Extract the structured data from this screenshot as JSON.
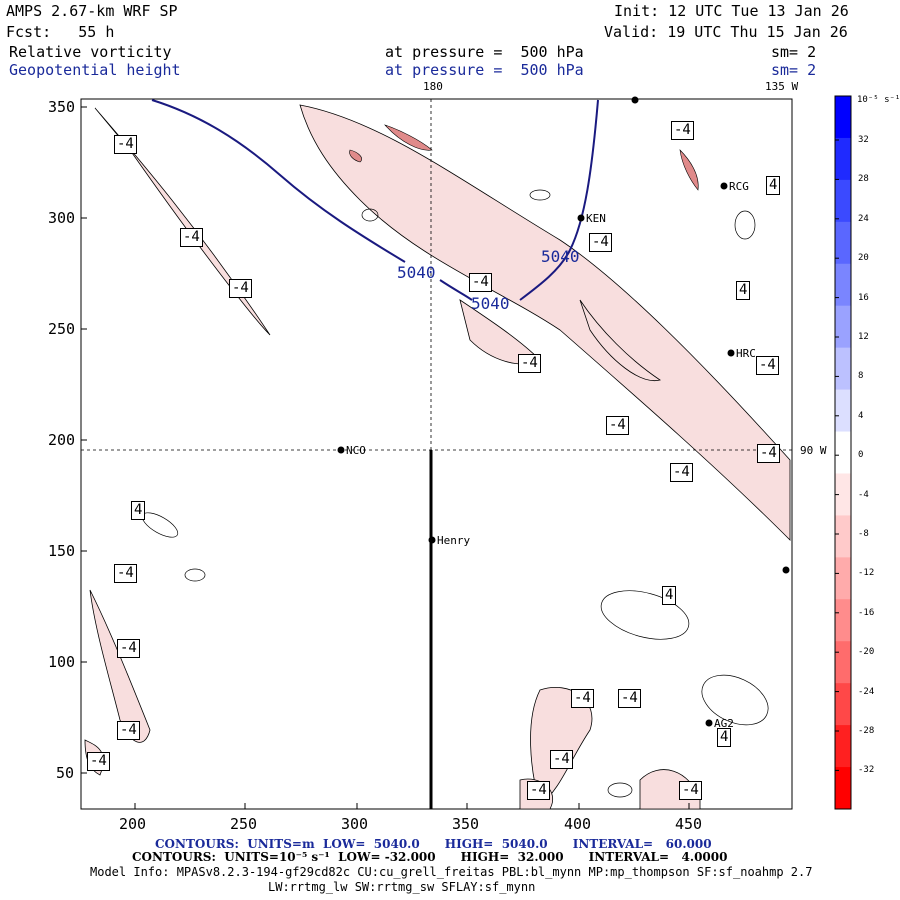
{
  "header": {
    "model": "AMPS 2.67-km WRF SP",
    "fcst": "Fcst:   55 h",
    "init": "Init: 12 UTC Tue 13 Jan 26",
    "valid": "Valid: 19 UTC Thu 15 Jan 26",
    "field1": "Relative vorticity",
    "field1_level": "at pressure =  500 hPa",
    "field1_sm": "sm= 2",
    "field2": "Geopotential height",
    "field2_level": "at pressure =  500 hPa",
    "field2_sm": "sm= 2"
  },
  "map": {
    "xticks": [
      "200",
      "250",
      "300",
      "350",
      "400",
      "450"
    ],
    "yticks": [
      "350",
      "300",
      "250",
      "200",
      "150",
      "100",
      "50"
    ],
    "lon_180": "180",
    "lon_135w": "135 W",
    "lon_90w": "90 W",
    "stations": [
      "RCG",
      "KEN",
      "HRC",
      "NCO",
      "Henry",
      "AG2"
    ],
    "height_label": "5040",
    "vort_label_neg": "-4",
    "vort_label_pos": "4"
  },
  "colorbar": {
    "unit_label": "10⁻⁵ s⁻¹",
    "labels": [
      "32",
      "28",
      "24",
      "20",
      "16",
      "12",
      "8",
      "4",
      "0",
      "-4",
      "-8",
      "-12",
      "-16",
      "-20",
      "-24",
      "-28",
      "-32"
    ],
    "colors": [
      "#0000ff",
      "#1f2aff",
      "#3b4aff",
      "#5a67ff",
      "#7a85ff",
      "#9aa2ff",
      "#bcc1ff",
      "#dcdfff",
      "#ffffff",
      "#ffe6e6",
      "#ffcaca",
      "#ffabab",
      "#ff8c8c",
      "#ff6c6c",
      "#ff4848",
      "#ff2020",
      "#ff0000"
    ]
  },
  "footer": {
    "line1": "CONTOURS:  UNITS=m  LOW=  5040.0      HIGH=  5040.0      INTERVAL=   60.000",
    "line2": "CONTOURS:  UNITS=10⁻⁵ s⁻¹  LOW= -32.000      HIGH=  32.000      INTERVAL=   4.0000",
    "line3": "Model Info: MPASv8.2.3-194-gf29cd82c CU:cu_grell_freitas PBL:bl_mynn MP:mp_thompson SF:sf_noahmp 2.7",
    "line4": "LW:rrtmg_lw SW:rrtmg_sw SFLAY:sf_mynn"
  }
}
